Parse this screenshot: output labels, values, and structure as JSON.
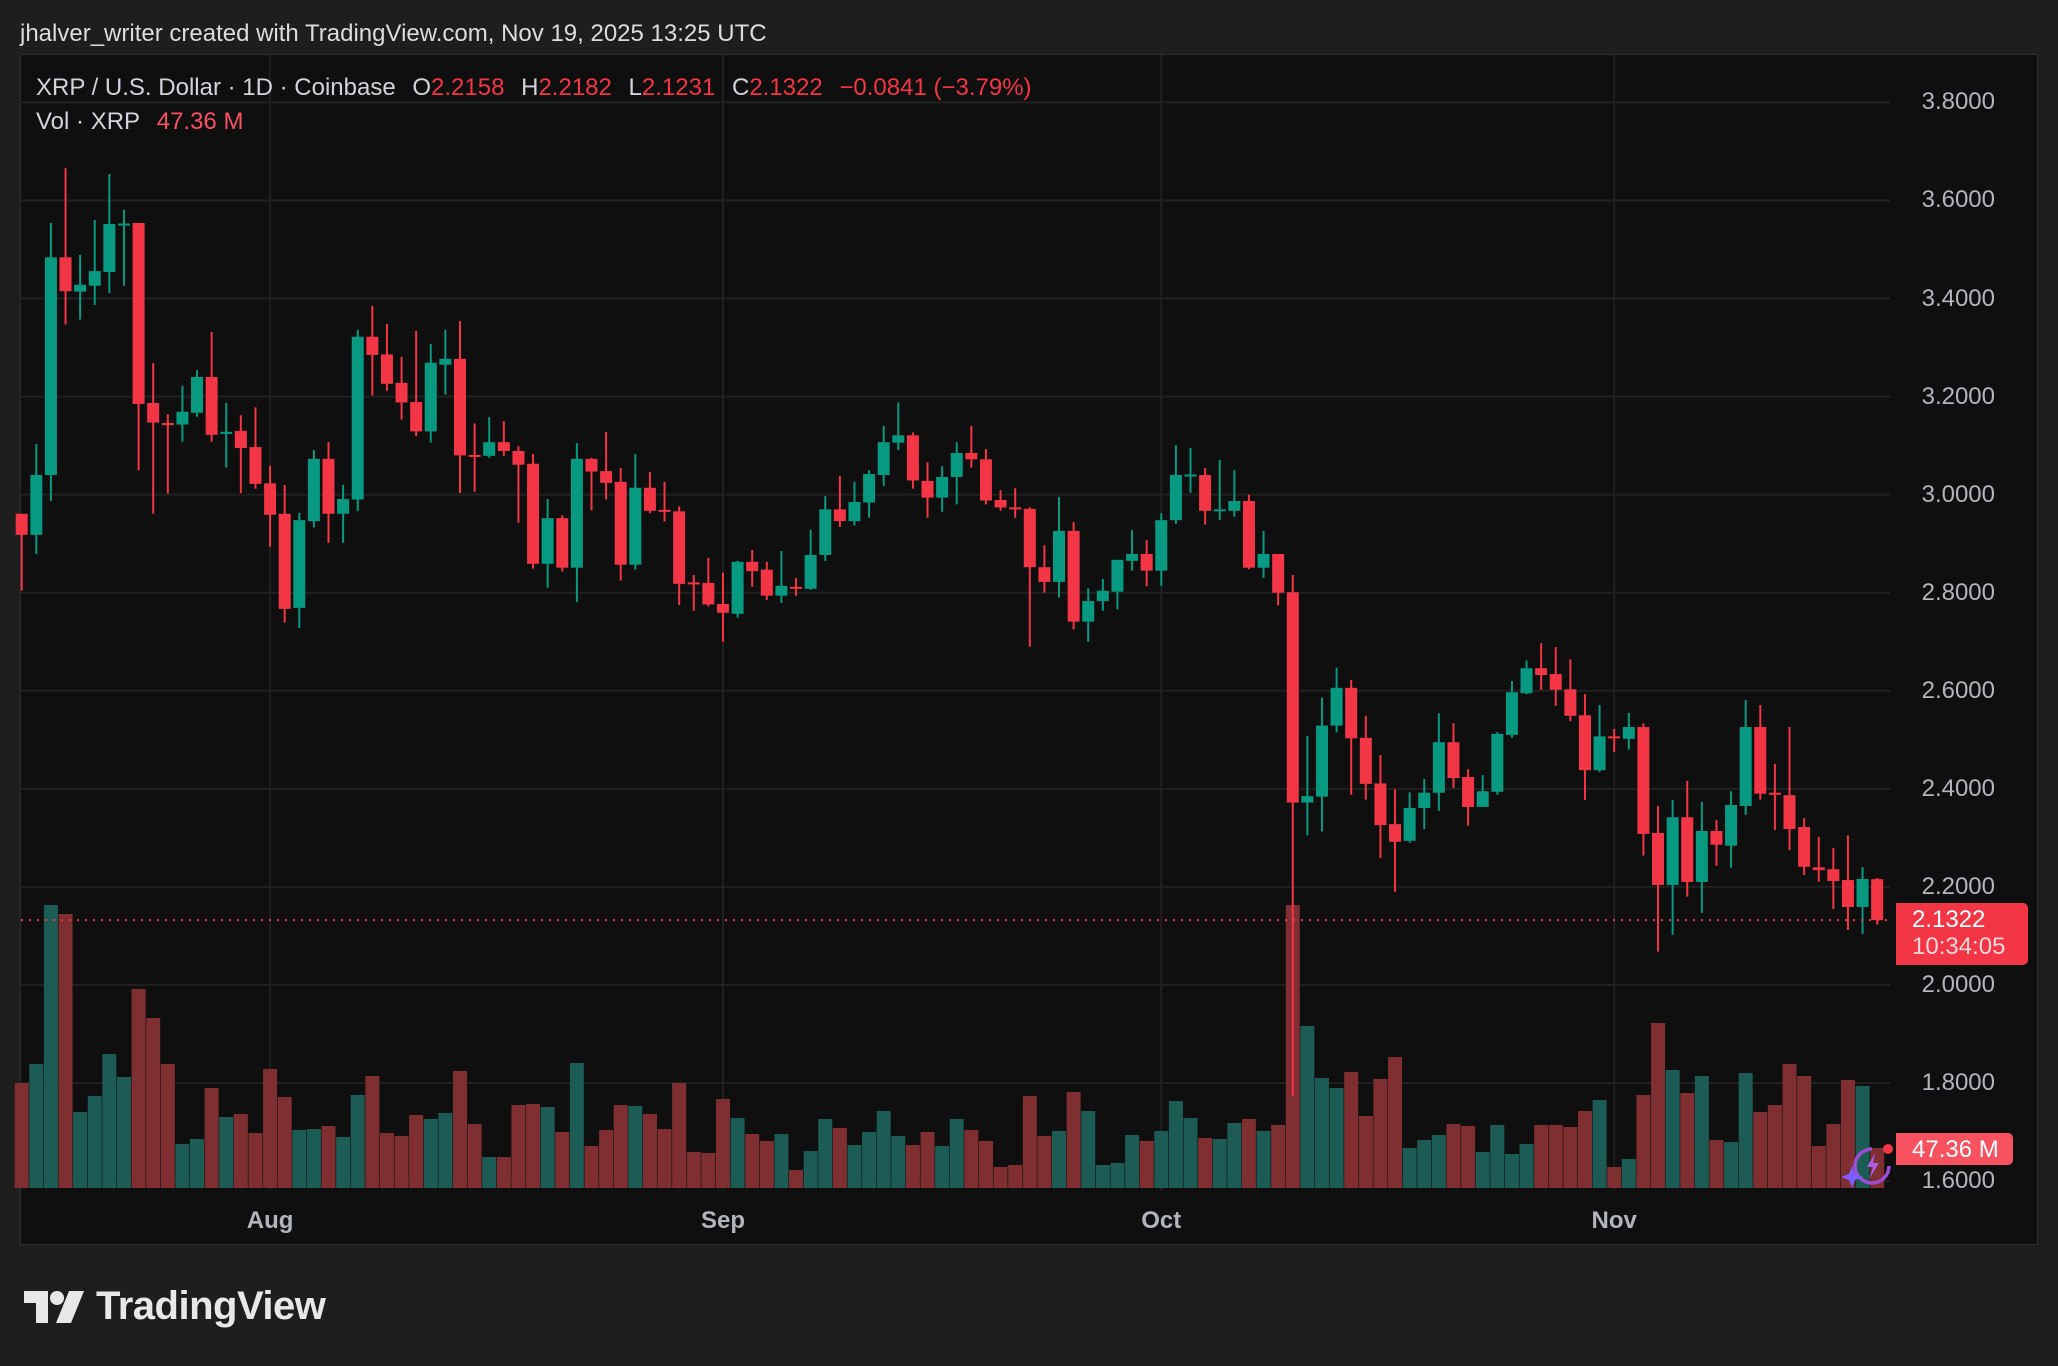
{
  "credit": "jhalver_writer created with TradingView.com, Nov 19, 2025 13:25 UTC",
  "legend": {
    "symbol": "XRP / U.S. Dollar · 1D · Coinbase",
    "o_label": "O",
    "o_value": "2.2158",
    "h_label": "H",
    "h_value": "2.2182",
    "l_label": "L",
    "l_value": "2.1231",
    "c_label": "C",
    "c_value": "2.1322",
    "change": "−0.0841 (−3.79%)",
    "vol_label": "Vol · XRP",
    "vol_value": "47.36 M"
  },
  "price_tag": {
    "price": "2.1322",
    "countdown": "10:34:05"
  },
  "vol_tag": "47.36 M",
  "logo": {
    "text": "TradingView"
  },
  "colors": {
    "up": "#089981",
    "down": "#f23645",
    "vol_up": "#1d5c55",
    "vol_down": "#7f2f31",
    "grid": "#202020",
    "current_price": "#f23645"
  },
  "icons": [
    "tradingview-logo-icon",
    "lightning-sparkle-icon"
  ],
  "chart_data": {
    "type": "candlestick",
    "title": "XRP / U.S. Dollar · 1D · Coinbase",
    "ylim": [
      1.6,
      3.8
    ],
    "y_ticks": [
      "3.8000",
      "3.6000",
      "3.4000",
      "3.2000",
      "3.0000",
      "2.8000",
      "2.6000",
      "2.4000",
      "2.2000",
      "2.0000",
      "1.8000",
      "1.6000"
    ],
    "x_ticks": [
      {
        "label": "Aug",
        "date": "2025-08-01"
      },
      {
        "label": "Sep",
        "date": "2025-09-01"
      },
      {
        "label": "Oct",
        "date": "2025-10-01"
      },
      {
        "label": "Nov",
        "date": "2025-11-01"
      }
    ],
    "grid": true,
    "current_price": 2.1322,
    "columns": [
      "date",
      "open",
      "high",
      "low",
      "close",
      "volume_M"
    ],
    "candles": [
      [
        "2025-07-15",
        2.961,
        2.961,
        2.804,
        2.918,
        124.1
      ],
      [
        "2025-07-16",
        2.918,
        3.103,
        2.879,
        3.04,
        146.6
      ],
      [
        "2025-07-17",
        3.04,
        3.554,
        2.987,
        3.484,
        334.5
      ],
      [
        "2025-07-18",
        3.484,
        3.666,
        3.347,
        3.415,
        323.9
      ],
      [
        "2025-07-19",
        3.414,
        3.489,
        3.357,
        3.428,
        89.8
      ],
      [
        "2025-07-20",
        3.426,
        3.56,
        3.387,
        3.456,
        108.7
      ],
      [
        "2025-07-21",
        3.454,
        3.654,
        3.411,
        3.552,
        158.4
      ],
      [
        "2025-07-22",
        3.552,
        3.581,
        3.426,
        3.553,
        131.2
      ],
      [
        "2025-07-23",
        3.554,
        3.554,
        3.05,
        3.185,
        235.2
      ],
      [
        "2025-07-24",
        3.187,
        3.268,
        2.961,
        3.147,
        200.9
      ],
      [
        "2025-07-25",
        3.146,
        3.164,
        3.002,
        3.145,
        146.6
      ],
      [
        "2025-07-26",
        3.143,
        3.222,
        3.108,
        3.169,
        52.0
      ],
      [
        "2025-07-27",
        3.167,
        3.254,
        3.159,
        3.24,
        57.9
      ],
      [
        "2025-07-28",
        3.24,
        3.332,
        3.108,
        3.122,
        118.2
      ],
      [
        "2025-07-29",
        3.127,
        3.187,
        3.055,
        3.128,
        83.9
      ],
      [
        "2025-07-30",
        3.13,
        3.162,
        3.003,
        3.095,
        87.5
      ],
      [
        "2025-07-31",
        3.097,
        3.178,
        3.012,
        3.022,
        65.0
      ],
      [
        "2025-08-01",
        3.023,
        3.059,
        2.894,
        2.959,
        140.7
      ],
      [
        "2025-08-02",
        2.961,
        3.02,
        2.739,
        2.767,
        107.6
      ],
      [
        "2025-08-03",
        2.769,
        2.963,
        2.728,
        2.948,
        68.6
      ],
      [
        "2025-08-04",
        2.946,
        3.091,
        2.933,
        3.073,
        69.7
      ],
      [
        "2025-08-05",
        3.073,
        3.107,
        2.902,
        2.961,
        73.3
      ],
      [
        "2025-08-06",
        2.961,
        3.02,
        2.902,
        2.991,
        60.3
      ],
      [
        "2025-08-07",
        2.99,
        3.336,
        2.966,
        3.322,
        109.9
      ],
      [
        "2025-08-08",
        3.322,
        3.385,
        3.202,
        3.285,
        132.4
      ],
      [
        "2025-08-09",
        3.286,
        3.348,
        3.212,
        3.226,
        65.0
      ],
      [
        "2025-08-10",
        3.228,
        3.281,
        3.153,
        3.188,
        61.5
      ],
      [
        "2025-08-11",
        3.189,
        3.334,
        3.119,
        3.129,
        86.3
      ],
      [
        "2025-08-12",
        3.129,
        3.307,
        3.106,
        3.269,
        81.6
      ],
      [
        "2025-08-13",
        3.265,
        3.336,
        3.204,
        3.277,
        88.7
      ],
      [
        "2025-08-14",
        3.277,
        3.354,
        3.003,
        3.08,
        138.3
      ],
      [
        "2025-08-15",
        3.081,
        3.145,
        3.006,
        3.079,
        75.6
      ],
      [
        "2025-08-16",
        3.079,
        3.158,
        3.075,
        3.107,
        36.6
      ],
      [
        "2025-08-17",
        3.107,
        3.15,
        3.079,
        3.089,
        36.6
      ],
      [
        "2025-08-18",
        3.089,
        3.099,
        2.943,
        3.061,
        98.1
      ],
      [
        "2025-08-19",
        3.063,
        3.083,
        2.849,
        2.859,
        99.3
      ],
      [
        "2025-08-20",
        2.859,
        2.991,
        2.81,
        2.952,
        95.7
      ],
      [
        "2025-08-21",
        2.952,
        2.958,
        2.843,
        2.851,
        66.2
      ],
      [
        "2025-08-22",
        2.851,
        3.105,
        2.781,
        3.073,
        147.8
      ],
      [
        "2025-08-23",
        3.073,
        3.075,
        2.968,
        3.047,
        49.6
      ],
      [
        "2025-08-24",
        3.048,
        3.128,
        2.99,
        3.024,
        68.6
      ],
      [
        "2025-08-25",
        3.026,
        3.054,
        2.825,
        2.857,
        98.1
      ],
      [
        "2025-08-26",
        2.857,
        3.083,
        2.847,
        3.014,
        96.9
      ],
      [
        "2025-08-27",
        3.014,
        3.046,
        2.962,
        2.967,
        87.5
      ],
      [
        "2025-08-28",
        2.969,
        3.026,
        2.945,
        2.968,
        69.7
      ],
      [
        "2025-08-29",
        2.966,
        2.976,
        2.775,
        2.818,
        124.1
      ],
      [
        "2025-08-30",
        2.821,
        2.836,
        2.763,
        2.82,
        42.6
      ],
      [
        "2025-08-31",
        2.82,
        2.871,
        2.772,
        2.776,
        41.4
      ],
      [
        "2025-09-01",
        2.777,
        2.841,
        2.7,
        2.759,
        105.2
      ],
      [
        "2025-09-02",
        2.757,
        2.865,
        2.749,
        2.863,
        82.7
      ],
      [
        "2025-09-03",
        2.863,
        2.887,
        2.812,
        2.844,
        63.8
      ],
      [
        "2025-09-04",
        2.847,
        2.863,
        2.785,
        2.794,
        55.6
      ],
      [
        "2025-09-05",
        2.794,
        2.885,
        2.779,
        2.814,
        63.8
      ],
      [
        "2025-09-06",
        2.812,
        2.83,
        2.794,
        2.811,
        21.3
      ],
      [
        "2025-09-07",
        2.808,
        2.928,
        2.806,
        2.877,
        43.7
      ],
      [
        "2025-09-08",
        2.877,
        2.997,
        2.865,
        2.97,
        81.6
      ],
      [
        "2025-09-09",
        2.97,
        3.038,
        2.934,
        2.946,
        70.9
      ],
      [
        "2025-09-10",
        2.946,
        3.026,
        2.937,
        2.985,
        50.8
      ],
      [
        "2025-09-11",
        2.984,
        3.05,
        2.953,
        3.042,
        66.2
      ],
      [
        "2025-09-12",
        3.04,
        3.14,
        3.018,
        3.107,
        91.0
      ],
      [
        "2025-09-13",
        3.106,
        3.188,
        3.091,
        3.121,
        61.5
      ],
      [
        "2025-09-14",
        3.121,
        3.127,
        3.012,
        3.029,
        50.8
      ],
      [
        "2025-09-15",
        3.028,
        3.066,
        2.953,
        2.994,
        66.2
      ],
      [
        "2025-09-16",
        2.994,
        3.058,
        2.965,
        3.036,
        49.6
      ],
      [
        "2025-09-17",
        3.036,
        3.107,
        2.98,
        3.085,
        81.6
      ],
      [
        "2025-09-18",
        3.085,
        3.14,
        3.055,
        3.072,
        68.6
      ],
      [
        "2025-09-19",
        3.072,
        3.093,
        2.98,
        2.988,
        55.6
      ],
      [
        "2025-09-20",
        2.989,
        3.009,
        2.967,
        2.974,
        24.8
      ],
      [
        "2025-09-21",
        2.974,
        3.013,
        2.953,
        2.972,
        27.2
      ],
      [
        "2025-09-22",
        2.971,
        2.974,
        2.69,
        2.852,
        108.7
      ],
      [
        "2025-09-23",
        2.852,
        2.897,
        2.8,
        2.822,
        61.5
      ],
      [
        "2025-09-24",
        2.822,
        2.995,
        2.79,
        2.926,
        67.4
      ],
      [
        "2025-09-25",
        2.926,
        2.944,
        2.725,
        2.741,
        113.5
      ],
      [
        "2025-09-26",
        2.741,
        2.809,
        2.7,
        2.783,
        91.0
      ],
      [
        "2025-09-27",
        2.783,
        2.828,
        2.763,
        2.804,
        27.2
      ],
      [
        "2025-09-28",
        2.802,
        2.867,
        2.766,
        2.867,
        29.6
      ],
      [
        "2025-09-29",
        2.865,
        2.928,
        2.845,
        2.879,
        62.6
      ],
      [
        "2025-09-30",
        2.879,
        2.907,
        2.813,
        2.845,
        55.6
      ],
      [
        "2025-10-01",
        2.845,
        2.962,
        2.814,
        2.948,
        67.4
      ],
      [
        "2025-10-02",
        2.948,
        3.101,
        2.94,
        3.04,
        102.8
      ],
      [
        "2025-10-03",
        3.04,
        3.095,
        3.004,
        3.041,
        82.7
      ],
      [
        "2025-10-04",
        3.04,
        3.054,
        2.939,
        2.967,
        59.1
      ],
      [
        "2025-10-05",
        2.968,
        3.071,
        2.948,
        2.97,
        57.9
      ],
      [
        "2025-10-06",
        2.967,
        3.05,
        2.955,
        2.987,
        76.8
      ],
      [
        "2025-10-07",
        2.987,
        3.0,
        2.848,
        2.851,
        81.6
      ],
      [
        "2025-10-08",
        2.851,
        2.926,
        2.83,
        2.879,
        67.4
      ],
      [
        "2025-10-09",
        2.879,
        2.879,
        2.774,
        2.8,
        74.5
      ],
      [
        "2025-10-10",
        2.801,
        2.836,
        1.773,
        2.372,
        334.5
      ],
      [
        "2025-10-11",
        2.372,
        2.508,
        2.305,
        2.385,
        191.5
      ],
      [
        "2025-10-12",
        2.384,
        2.586,
        2.313,
        2.529,
        130.0
      ],
      [
        "2025-10-13",
        2.529,
        2.647,
        2.515,
        2.606,
        118.2
      ],
      [
        "2025-10-14",
        2.606,
        2.622,
        2.388,
        2.503,
        137.1
      ],
      [
        "2025-10-15",
        2.504,
        2.549,
        2.378,
        2.41,
        85.1
      ],
      [
        "2025-10-16",
        2.411,
        2.469,
        2.259,
        2.326,
        128.8
      ],
      [
        "2025-10-17",
        2.328,
        2.399,
        2.19,
        2.292,
        154.8
      ],
      [
        "2025-10-18",
        2.294,
        2.393,
        2.29,
        2.361,
        47.3
      ],
      [
        "2025-10-19",
        2.361,
        2.42,
        2.318,
        2.392,
        56.7
      ],
      [
        "2025-10-20",
        2.392,
        2.554,
        2.355,
        2.495,
        62.6
      ],
      [
        "2025-10-21",
        2.495,
        2.534,
        2.402,
        2.422,
        75.6
      ],
      [
        "2025-10-22",
        2.424,
        2.44,
        2.325,
        2.363,
        73.3
      ],
      [
        "2025-10-23",
        2.363,
        2.428,
        2.363,
        2.395,
        42.6
      ],
      [
        "2025-10-24",
        2.394,
        2.516,
        2.388,
        2.512,
        74.5
      ],
      [
        "2025-10-25",
        2.51,
        2.62,
        2.504,
        2.597,
        40.2
      ],
      [
        "2025-10-26",
        2.595,
        2.662,
        2.593,
        2.646,
        52.0
      ],
      [
        "2025-10-27",
        2.646,
        2.697,
        2.602,
        2.632,
        74.5
      ],
      [
        "2025-10-28",
        2.634,
        2.689,
        2.569,
        2.602,
        74.5
      ],
      [
        "2025-10-29",
        2.603,
        2.664,
        2.538,
        2.549,
        72.1
      ],
      [
        "2025-10-30",
        2.55,
        2.593,
        2.377,
        2.438,
        91.0
      ],
      [
        "2025-10-31",
        2.438,
        2.571,
        2.434,
        2.507,
        104.0
      ],
      [
        "2025-11-01",
        2.507,
        2.522,
        2.475,
        2.506,
        24.8
      ],
      [
        "2025-11-02",
        2.502,
        2.555,
        2.48,
        2.526,
        34.3
      ],
      [
        "2025-11-03",
        2.526,
        2.534,
        2.264,
        2.308,
        109.9
      ],
      [
        "2025-11-04",
        2.31,
        2.365,
        2.068,
        2.204,
        195.0
      ],
      [
        "2025-11-05",
        2.204,
        2.377,
        2.102,
        2.342,
        139.5
      ],
      [
        "2025-11-06",
        2.342,
        2.416,
        2.18,
        2.21,
        112.3
      ],
      [
        "2025-11-07",
        2.21,
        2.373,
        2.147,
        2.314,
        132.4
      ],
      [
        "2025-11-08",
        2.314,
        2.336,
        2.243,
        2.286,
        56.7
      ],
      [
        "2025-11-09",
        2.284,
        2.395,
        2.239,
        2.367,
        54.4
      ],
      [
        "2025-11-10",
        2.365,
        2.581,
        2.347,
        2.526,
        135.9
      ],
      [
        "2025-11-11",
        2.526,
        2.571,
        2.378,
        2.39,
        89.8
      ],
      [
        "2025-11-12",
        2.392,
        2.451,
        2.316,
        2.388,
        98.1
      ],
      [
        "2025-11-13",
        2.387,
        2.526,
        2.275,
        2.318,
        146.6
      ],
      [
        "2025-11-14",
        2.322,
        2.34,
        2.224,
        2.241,
        132.4
      ],
      [
        "2025-11-15",
        2.24,
        2.302,
        2.21,
        2.234,
        49.6
      ],
      [
        "2025-11-16",
        2.236,
        2.279,
        2.155,
        2.212,
        75.6
      ],
      [
        "2025-11-17",
        2.214,
        2.305,
        2.112,
        2.159,
        127.7
      ],
      [
        "2025-11-18",
        2.159,
        2.24,
        2.104,
        2.216,
        120.6
      ],
      [
        "2025-11-19",
        2.2158,
        2.2182,
        2.1231,
        2.1322,
        47.36
      ]
    ]
  }
}
